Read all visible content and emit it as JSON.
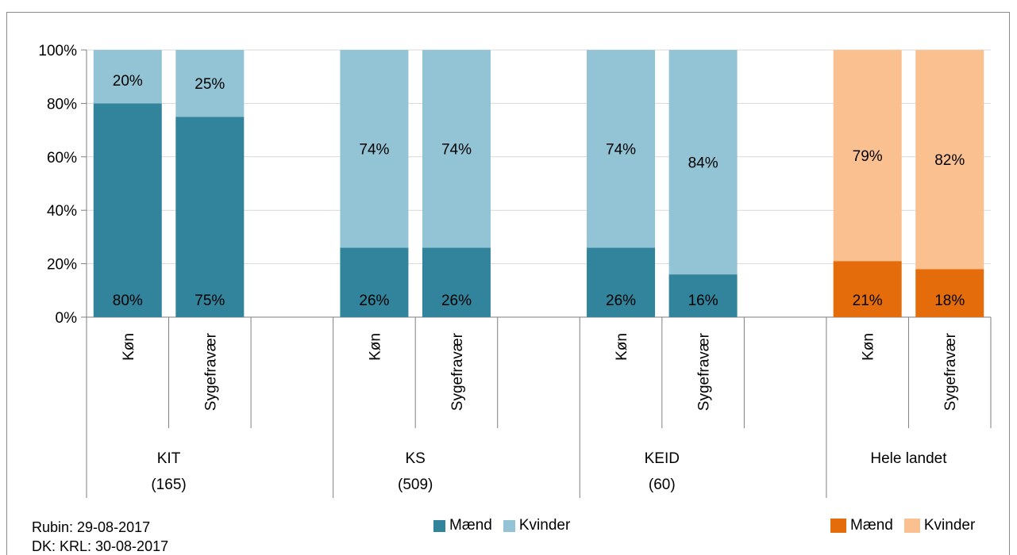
{
  "chart_data": {
    "type": "bar",
    "stacked": true,
    "percent": true,
    "ylim": [
      0,
      100
    ],
    "ytick_labels": [
      "0%",
      "20%",
      "40%",
      "60%",
      "80%",
      "100%"
    ],
    "grid": true,
    "groups": [
      {
        "label": "KIT",
        "sublabel": "(165)",
        "highlight": false,
        "bars": [
          {
            "category": "Køn",
            "maend": 80,
            "kvinder": 20
          },
          {
            "category": "Sygefravær",
            "maend": 75,
            "kvinder": 25
          }
        ]
      },
      {
        "label": "KS",
        "sublabel": "(509)",
        "highlight": false,
        "bars": [
          {
            "category": "Køn",
            "maend": 26,
            "kvinder": 74
          },
          {
            "category": "Sygefravær",
            "maend": 26,
            "kvinder": 74
          }
        ]
      },
      {
        "label": "KEID",
        "sublabel": "(60)",
        "highlight": false,
        "bars": [
          {
            "category": "Køn",
            "maend": 26,
            "kvinder": 74
          },
          {
            "category": "Sygefravær",
            "maend": 16,
            "kvinder": 84
          }
        ]
      },
      {
        "label": "Hele landet",
        "sublabel": "",
        "highlight": true,
        "bars": [
          {
            "category": "Køn",
            "maend": 21,
            "kvinder": 79
          },
          {
            "category": "Sygefravær",
            "maend": 18,
            "kvinder": 82
          }
        ]
      }
    ],
    "colors": {
      "maend": "#31849b",
      "kvinder": "#92c4d5",
      "maend_highlight": "#e46c0a",
      "kvinder_highlight": "#fac090",
      "grid": "#d9d9d9",
      "axis": "#7f7f7f"
    },
    "legend": [
      {
        "label": "Mænd",
        "color": "#31849b"
      },
      {
        "label": "Kvinder",
        "color": "#92c4d5"
      }
    ],
    "legend_highlight": [
      {
        "label": "Mænd",
        "color": "#e46c0a"
      },
      {
        "label": "Kvinder",
        "color": "#fac090"
      }
    ]
  },
  "footnote": {
    "line1": "Rubin: 29-08-2017",
    "line2": "DK: KRL: 30-08-2017"
  }
}
